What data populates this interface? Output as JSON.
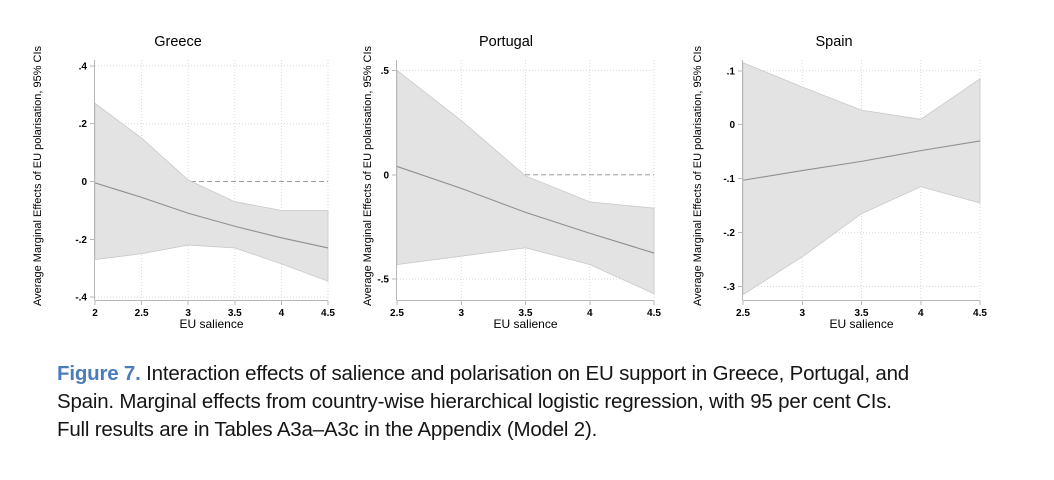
{
  "figure": {
    "caption": {
      "label": "Figure 7.",
      "lines": [
        " Interaction effects of salience and polarisation on EU support in Greece, Portugal, and",
        "Spain. Marginal effects from country-wise hierarchical logistic regression, with 95 per cent CIs.",
        "Full results are in Tables A3a–A3c in the Appendix (Model 2)."
      ]
    },
    "colors": {
      "figure_label_blue": "#4b7cbb",
      "ci_band_fill": "#e3e3e3",
      "ci_band_edge": "#c9c9c9",
      "mean_line": "#8f8f8f",
      "zero_line": "#9c9c9c",
      "gridline": "#d9d9d9",
      "axis": "#b8b8b8",
      "tick_text": "#000000"
    }
  },
  "chart_data": [
    {
      "type": "area",
      "title": "Greece",
      "xlabel": "EU salience",
      "ylabel": "Average Marginal Effects of EU polarisation, 95% CIs",
      "x": [
        2,
        2.5,
        3,
        3.5,
        4,
        4.5
      ],
      "x_tick_values": [
        2,
        2.5,
        3,
        3.5,
        4,
        4.5
      ],
      "x_tick_labels": [
        "2",
        "2.5",
        "3",
        "3.5",
        "4",
        "4.5"
      ],
      "y_tick_values": [
        0.4,
        0.2,
        0,
        -0.2,
        -0.4
      ],
      "y_tick_labels": [
        ".4",
        ".2",
        "0",
        "-.2",
        "-.4"
      ],
      "xlim": [
        2,
        4.5
      ],
      "ylim": [
        -0.41,
        0.42
      ],
      "zero_reference_line": true,
      "grid": "dotted",
      "legend": "none",
      "series": [
        {
          "name": "marginal_effect",
          "values": [
            -0.005,
            -0.055,
            -0.11,
            -0.155,
            -0.195,
            -0.23
          ]
        },
        {
          "name": "upper_95_ci",
          "values": [
            0.27,
            0.15,
            0.005,
            -0.07,
            -0.1,
            -0.1
          ]
        },
        {
          "name": "lower_95_ci",
          "values": [
            -0.27,
            -0.25,
            -0.22,
            -0.23,
            -0.285,
            -0.345
          ]
        }
      ]
    },
    {
      "type": "area",
      "title": "Portugal",
      "xlabel": "EU salience",
      "ylabel": "Average Marginal Effects of EU polarisation, 95% CIs",
      "x": [
        2.5,
        3,
        3.5,
        4,
        4.5
      ],
      "x_tick_values": [
        2.5,
        3,
        3.5,
        4,
        4.5
      ],
      "x_tick_labels": [
        "2.5",
        "3",
        "3.5",
        "4",
        "4.5"
      ],
      "y_tick_values": [
        0.5,
        0,
        -0.5
      ],
      "y_tick_labels": [
        ".5",
        "0",
        "-.5"
      ],
      "xlim": [
        2.5,
        4.5
      ],
      "ylim": [
        -0.6,
        0.55
      ],
      "zero_reference_line": true,
      "grid": "dotted",
      "legend": "none",
      "series": [
        {
          "name": "marginal_effect",
          "values": [
            0.04,
            -0.065,
            -0.18,
            -0.28,
            -0.375
          ]
        },
        {
          "name": "upper_95_ci",
          "values": [
            0.5,
            0.26,
            -0.005,
            -0.13,
            -0.16
          ]
        },
        {
          "name": "lower_95_ci",
          "values": [
            -0.43,
            -0.39,
            -0.35,
            -0.43,
            -0.57
          ]
        }
      ]
    },
    {
      "type": "area",
      "title": "Spain",
      "xlabel": "EU salience",
      "ylabel": "Average Marginal Effects of EU polarisation, 95% CIs",
      "x": [
        2.5,
        3,
        3.5,
        4,
        4.5
      ],
      "x_tick_values": [
        2.5,
        3,
        3.5,
        4,
        4.5
      ],
      "x_tick_labels": [
        "2.5",
        "3",
        "3.5",
        "4",
        "4.5"
      ],
      "y_tick_values": [
        0.1,
        0,
        -0.1,
        -0.2,
        -0.3
      ],
      "y_tick_labels": [
        ".1",
        "0",
        "-.1",
        "-.2",
        "-.3"
      ],
      "xlim": [
        2.5,
        4.5
      ],
      "ylim": [
        -0.325,
        0.12
      ],
      "zero_reference_line": true,
      "grid": "dotted",
      "legend": "none",
      "series": [
        {
          "name": "marginal_effect",
          "values": [
            -0.103,
            -0.085,
            -0.068,
            -0.048,
            -0.03
          ]
        },
        {
          "name": "upper_95_ci",
          "values": [
            0.115,
            0.07,
            0.027,
            0.01,
            0.085
          ]
        },
        {
          "name": "lower_95_ci",
          "values": [
            -0.315,
            -0.245,
            -0.165,
            -0.115,
            -0.145
          ]
        }
      ]
    }
  ]
}
